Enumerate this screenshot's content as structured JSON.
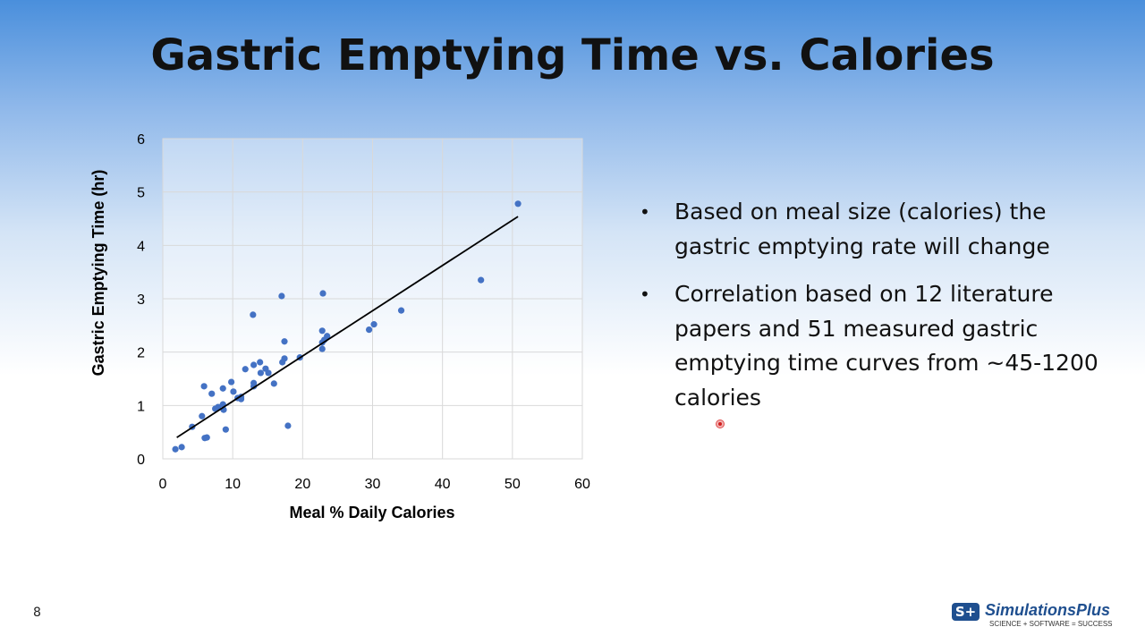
{
  "slide": {
    "title": "Gastric Emptying Time vs. Calories",
    "page_number": "8",
    "bullets": [
      "Based on meal size (calories) the gastric emptying rate will change",
      "Correlation based on 12 literature papers and 51 measured gastric emptying time curves from ~45-1200 calories"
    ],
    "logo": {
      "name": "SimulationsPlus",
      "badge": "S+",
      "tagline": "SCIENCE + SOFTWARE = SUCCESS"
    }
  },
  "chart_data": {
    "type": "scatter",
    "title": "",
    "xlabel": "Meal % Daily Calories",
    "ylabel": "Gastric Emptying Time (hr)",
    "xlim": [
      0,
      60
    ],
    "ylim": [
      0,
      6
    ],
    "xticks": [
      0,
      10,
      20,
      30,
      40,
      50,
      60
    ],
    "yticks": [
      0,
      1,
      2,
      3,
      4,
      5,
      6
    ],
    "grid": true,
    "legend": "none",
    "point_color": "#4472c4",
    "points": [
      [
        1.8,
        0.18
      ],
      [
        2.7,
        0.22
      ],
      [
        4.2,
        0.6
      ],
      [
        5.6,
        0.8
      ],
      [
        5.9,
        1.36
      ],
      [
        6.0,
        0.39
      ],
      [
        6.3,
        0.4
      ],
      [
        7.0,
        1.22
      ],
      [
        7.5,
        0.94
      ],
      [
        7.9,
        0.97
      ],
      [
        8.6,
        1.32
      ],
      [
        8.6,
        1.02
      ],
      [
        8.7,
        0.92
      ],
      [
        9.0,
        0.55
      ],
      [
        9.8,
        1.44
      ],
      [
        10.1,
        1.26
      ],
      [
        10.7,
        1.14
      ],
      [
        11.2,
        1.16
      ],
      [
        11.2,
        1.12
      ],
      [
        11.8,
        1.68
      ],
      [
        12.9,
        2.7
      ],
      [
        13.0,
        1.76
      ],
      [
        13.0,
        1.42
      ],
      [
        13.0,
        1.36
      ],
      [
        13.9,
        1.81
      ],
      [
        14.0,
        1.61
      ],
      [
        14.7,
        1.69
      ],
      [
        15.1,
        1.61
      ],
      [
        15.9,
        1.41
      ],
      [
        17.0,
        3.05
      ],
      [
        17.1,
        1.81
      ],
      [
        17.4,
        1.88
      ],
      [
        17.4,
        2.2
      ],
      [
        17.9,
        0.62
      ],
      [
        19.6,
        1.9
      ],
      [
        22.9,
        3.1
      ],
      [
        22.8,
        2.4
      ],
      [
        22.8,
        2.18
      ],
      [
        22.8,
        2.06
      ],
      [
        23.1,
        2.23
      ],
      [
        23.5,
        2.3
      ],
      [
        29.5,
        2.42
      ],
      [
        30.2,
        2.52
      ],
      [
        34.1,
        2.78
      ],
      [
        45.5,
        3.35
      ],
      [
        50.8,
        4.78
      ]
    ],
    "trendline": {
      "x": [
        2.0,
        50.8
      ],
      "y": [
        0.4,
        4.54
      ],
      "color": "#000000"
    }
  }
}
